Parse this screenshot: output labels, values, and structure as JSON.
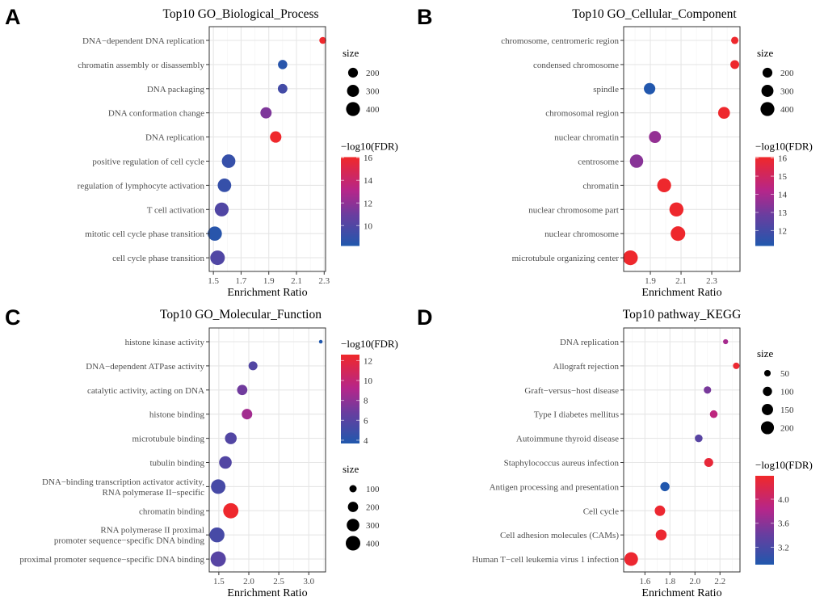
{
  "colors": {
    "low": "#2058ad",
    "mid1": "#6a3d9f",
    "mid2": "#b5268a",
    "high": "#f0282a"
  },
  "chart_data": [
    {
      "type": "scatter",
      "panel_letter": "A",
      "title": "Top10 GO_Biological_Process",
      "xlabel": "Enrichment Ratio",
      "xlim": [
        1.47,
        2.31
      ],
      "xticks": [
        1.5,
        1.7,
        1.9,
        2.1,
        2.3
      ],
      "xtick_labels": [
        "1.5",
        "1.7",
        "1.9",
        "2.1",
        "2.3"
      ],
      "grid": true,
      "legend_order": [
        "size",
        "color"
      ],
      "size_legend": {
        "title": "size",
        "values": [
          200,
          300,
          400
        ],
        "labels": [
          "200",
          "300",
          "400"
        ]
      },
      "color_legend": {
        "title": "−log10(FDR)",
        "range": [
          8.2,
          16.05
        ],
        "ticks": [
          10,
          12,
          14,
          16
        ],
        "labels": [
          "10",
          "12",
          "14",
          "16"
        ]
      },
      "categories": [
        "DNA−dependent DNA replication",
        "chromatin assembly or disassembly",
        "DNA packaging",
        "DNA conformation change",
        "DNA replication",
        "positive regulation of cell cycle",
        "regulation of lymphocyte activation",
        "T cell activation",
        "mitotic cell cycle phase transition",
        "cell cycle phase transition"
      ],
      "x": [
        2.29,
        2.0,
        2.0,
        1.88,
        1.95,
        1.61,
        1.58,
        1.56,
        1.51,
        1.53
      ],
      "neg_log10_fdr": [
        16,
        8.5,
        9.5,
        11.5,
        16,
        9,
        9,
        10,
        8.5,
        10
      ],
      "size": [
        100,
        180,
        190,
        260,
        270,
        380,
        380,
        400,
        420,
        440
      ]
    },
    {
      "type": "scatter",
      "panel_letter": "B",
      "title": "Top10 GO_Cellular_Component",
      "xlabel": "Enrichment Ratio",
      "xlim": [
        1.726,
        2.484
      ],
      "xticks": [
        1.9,
        2.1,
        2.3
      ],
      "xtick_labels": [
        "1.9",
        "2.1",
        "2.3"
      ],
      "grid": true,
      "legend_order": [
        "size",
        "color"
      ],
      "size_legend": {
        "title": "size",
        "values": [
          200,
          300,
          400
        ],
        "labels": [
          "200",
          "300",
          "400"
        ]
      },
      "color_legend": {
        "title": "−log10(FDR)",
        "range": [
          11.15,
          16.05
        ],
        "ticks": [
          12,
          13,
          14,
          15,
          16
        ],
        "labels": [
          "12",
          "13",
          "14",
          "15",
          "16"
        ]
      },
      "categories": [
        "chromosome, centromeric region",
        "condensed chromosome",
        "spindle",
        "chromosomal region",
        "nuclear chromatin",
        "centrosome",
        "chromatin",
        "nuclear chromosome part",
        "nuclear chromosome",
        "microtubule organizing center"
      ],
      "x": [
        2.45,
        2.45,
        1.895,
        2.38,
        1.93,
        1.81,
        1.99,
        2.07,
        2.08,
        1.77
      ],
      "neg_log10_fdr": [
        16,
        16,
        11.2,
        16,
        13.6,
        13.4,
        16,
        16,
        16,
        16
      ],
      "size": [
        110,
        160,
        270,
        290,
        300,
        370,
        400,
        410,
        440,
        450
      ]
    },
    {
      "type": "scatter",
      "panel_letter": "C",
      "title": "Top10 GO_Molecular_Function",
      "xlabel": "Enrichment Ratio",
      "xlim": [
        1.34,
        3.28
      ],
      "xticks": [
        1.5,
        2.0,
        2.5,
        3.0
      ],
      "xtick_labels": [
        "1.5",
        "2.0",
        "2.5",
        "3.0"
      ],
      "grid": true,
      "legend_order": [
        "color",
        "size"
      ],
      "size_legend": {
        "title": "size",
        "values": [
          100,
          200,
          300,
          400
        ],
        "labels": [
          "100",
          "200",
          "300",
          "400"
        ]
      },
      "color_legend": {
        "title": "−log10(FDR)",
        "range": [
          3.67,
          12.6
        ],
        "ticks": [
          4,
          6,
          8,
          10,
          12
        ],
        "labels": [
          "4",
          "6",
          "8",
          "10",
          "12"
        ]
      },
      "categories": [
        "histone kinase activity",
        "DNA−dependent ATPase activity",
        "catalytic activity, acting on DNA",
        "histone binding",
        "microtubule binding",
        "tubulin binding",
        "DNA−binding transcription activator activity,\nRNA polymerase II−specific",
        "chromatin binding",
        "RNA polymerase II proximal\npromoter sequence−specific DNA binding",
        "proximal promoter sequence−specific DNA binding"
      ],
      "x": [
        3.2,
        2.07,
        1.89,
        1.97,
        1.7,
        1.61,
        1.49,
        1.7,
        1.47,
        1.49
      ],
      "neg_log10_fdr": [
        3.7,
        5.8,
        7,
        8.6,
        5.8,
        5.8,
        5.3,
        12.5,
        5.3,
        6
      ],
      "size": [
        25,
        150,
        200,
        210,
        260,
        300,
        400,
        440,
        420,
        440
      ]
    },
    {
      "type": "scatter",
      "panel_letter": "D",
      "title": "Top10 pathway_KEGG",
      "xlabel": "Enrichment Ratio",
      "xlim": [
        1.43,
        2.36
      ],
      "xticks": [
        1.6,
        1.8,
        2.0,
        2.2
      ],
      "xtick_labels": [
        "1.6",
        "1.8",
        "2.0",
        "2.2"
      ],
      "grid": true,
      "legend_order": [
        "size",
        "color"
      ],
      "size_legend": {
        "title": "size",
        "values": [
          50,
          100,
          150,
          200
        ],
        "labels": [
          "50",
          "100",
          "150",
          "200"
        ]
      },
      "color_legend": {
        "title": "−log10(FDR)",
        "range": [
          2.91,
          4.39
        ],
        "ticks": [
          3.2,
          3.6,
          4.0
        ],
        "labels": [
          "3.2",
          "3.6",
          "4.0"
        ]
      },
      "categories": [
        "DNA replication",
        "Allograft rejection",
        "Graft−versus−host disease",
        "Type I diabetes mellitus",
        "Autoimmune thyroid disease",
        "Staphylococcus aureus infection",
        "Antigen processing and presentation",
        "Cell cycle",
        "Cell adhesion molecules (CAMs)",
        "Human T−cell leukemia virus 1 infection"
      ],
      "x": [
        2.245,
        2.33,
        2.1,
        2.15,
        2.03,
        2.11,
        1.76,
        1.72,
        1.73,
        1.49
      ],
      "neg_log10_fdr": [
        3.75,
        4.35,
        3.5,
        3.9,
        3.3,
        4.3,
        2.92,
        4.35,
        4.35,
        4.35
      ],
      "size": [
        30,
        50,
        65,
        70,
        70,
        95,
        100,
        130,
        140,
        220
      ]
    }
  ]
}
